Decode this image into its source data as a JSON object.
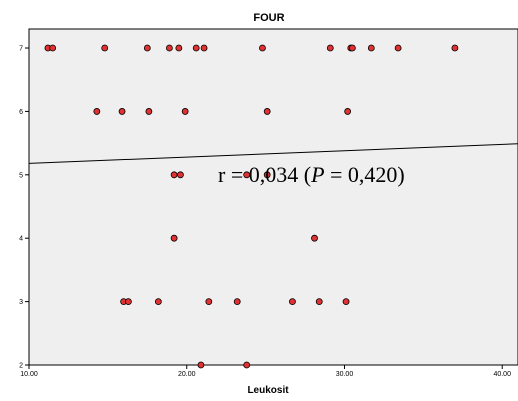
{
  "chart_data": {
    "type": "scatter",
    "title": "FOUR",
    "xlabel": "Leukosit",
    "ylabel": "",
    "xlim": [
      10,
      41
    ],
    "ylim": [
      2,
      7.3
    ],
    "x_ticks": [
      10,
      20,
      30,
      40
    ],
    "x_tick_labels": [
      "10.00",
      "20.00",
      "30.00",
      "40.00"
    ],
    "y_ticks": [
      2,
      3,
      4,
      5,
      6,
      7
    ],
    "y_tick_labels": [
      "2",
      "3",
      "4",
      "5",
      "6",
      "7"
    ],
    "grid": false,
    "legend": "none",
    "plot_background": "#efefef",
    "marker_color": "#e03232",
    "marker_edge_color": "#000000",
    "points": [
      {
        "x": 11.2,
        "y": 7
      },
      {
        "x": 11.5,
        "y": 7
      },
      {
        "x": 14.8,
        "y": 7
      },
      {
        "x": 17.5,
        "y": 7
      },
      {
        "x": 18.9,
        "y": 7
      },
      {
        "x": 19.5,
        "y": 7
      },
      {
        "x": 20.6,
        "y": 7
      },
      {
        "x": 21.1,
        "y": 7
      },
      {
        "x": 24.8,
        "y": 7
      },
      {
        "x": 29.1,
        "y": 7
      },
      {
        "x": 30.4,
        "y": 7
      },
      {
        "x": 30.5,
        "y": 7
      },
      {
        "x": 31.7,
        "y": 7
      },
      {
        "x": 33.4,
        "y": 7
      },
      {
        "x": 37.0,
        "y": 7
      },
      {
        "x": 14.3,
        "y": 6
      },
      {
        "x": 15.9,
        "y": 6
      },
      {
        "x": 17.6,
        "y": 6
      },
      {
        "x": 19.9,
        "y": 6
      },
      {
        "x": 25.1,
        "y": 6
      },
      {
        "x": 30.2,
        "y": 6
      },
      {
        "x": 19.2,
        "y": 5
      },
      {
        "x": 19.6,
        "y": 5
      },
      {
        "x": 23.8,
        "y": 5
      },
      {
        "x": 25.1,
        "y": 5
      },
      {
        "x": 19.2,
        "y": 4
      },
      {
        "x": 28.1,
        "y": 4
      },
      {
        "x": 16.0,
        "y": 3
      },
      {
        "x": 16.3,
        "y": 3
      },
      {
        "x": 18.2,
        "y": 3
      },
      {
        "x": 21.4,
        "y": 3
      },
      {
        "x": 23.2,
        "y": 3
      },
      {
        "x": 26.7,
        "y": 3
      },
      {
        "x": 28.4,
        "y": 3
      },
      {
        "x": 30.1,
        "y": 3
      },
      {
        "x": 20.9,
        "y": 2
      },
      {
        "x": 23.8,
        "y": 2
      }
    ],
    "fit_line": {
      "x": [
        10,
        41
      ],
      "y": [
        5.18,
        5.49
      ]
    },
    "annotation": {
      "r_part": "r = 0,034 (",
      "p_symbol": "P",
      "p_part": " = 0,420)"
    }
  }
}
